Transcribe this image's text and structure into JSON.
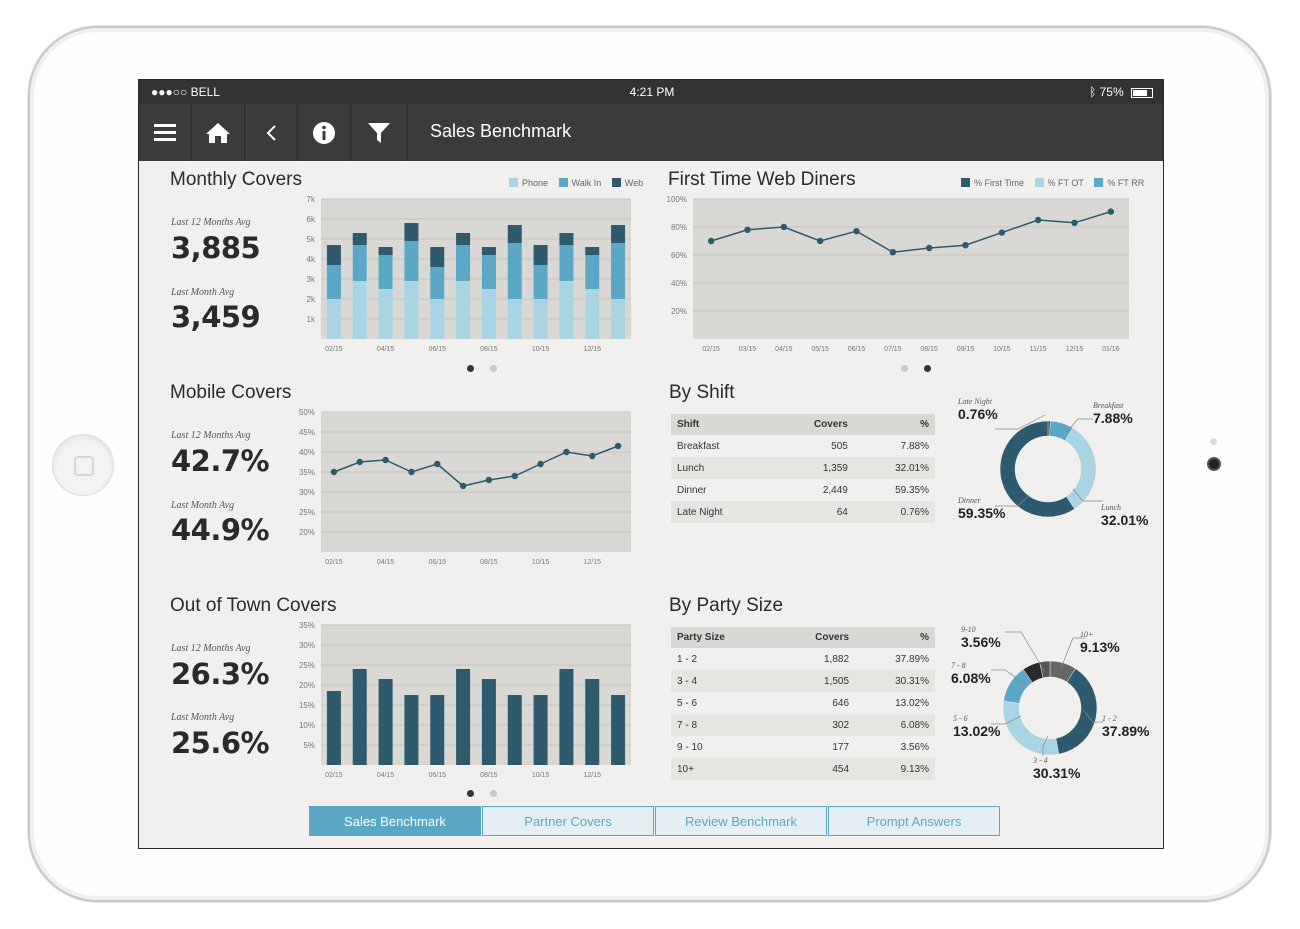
{
  "status": {
    "carrier": "●●●○○ BELL",
    "time": "4:21 PM",
    "battery": "75%"
  },
  "toolbar": {
    "title": "Sales Benchmark"
  },
  "colors": {
    "light": "#a9d4e4",
    "mid": "#5aa8c5",
    "dark": "#2e5a6d",
    "gray": "#666666",
    "black": "#333333"
  },
  "monthly": {
    "title": "Monthly Covers",
    "kpi1_label": "Last 12 Months Avg",
    "kpi1_value": "3,885",
    "kpi2_label": "Last Month Avg",
    "kpi2_value": "3,459",
    "legend": [
      "Phone",
      "Walk In",
      "Web"
    ]
  },
  "web_diners": {
    "title": "First Time Web Diners",
    "legend": [
      "% First Time",
      "% FT OT",
      "% FT RR"
    ]
  },
  "mobile": {
    "title": "Mobile Covers",
    "kpi1_label": "Last 12 Months Avg",
    "kpi1_value": "42.7%",
    "kpi2_label": "Last Month Avg",
    "kpi2_value": "44.9%"
  },
  "outoftown": {
    "title": "Out of Town Covers",
    "kpi1_label": "Last 12 Months Avg",
    "kpi1_value": "26.3%",
    "kpi2_label": "Last Month Avg",
    "kpi2_value": "25.6%"
  },
  "shift": {
    "title": "By Shift",
    "headers": [
      "Shift",
      "Covers",
      "%"
    ],
    "rows": [
      [
        "Breakfast",
        "505",
        "7.88%"
      ],
      [
        "Lunch",
        "1,359",
        "32.01%"
      ],
      [
        "Dinner",
        "2,449",
        "59.35%"
      ],
      [
        "Late Night",
        "64",
        "0.76%"
      ]
    ],
    "donut_labels": [
      {
        "name": "Late Night",
        "value": "0.76%"
      },
      {
        "name": "Breakfast",
        "value": "7.88%"
      },
      {
        "name": "Dinner",
        "value": "59.35%"
      },
      {
        "name": "Lunch",
        "value": "32.01%"
      }
    ]
  },
  "party": {
    "title": "By Party Size",
    "headers": [
      "Party Size",
      "Covers",
      "%"
    ],
    "rows": [
      [
        "1 - 2",
        "1,882",
        "37.89%"
      ],
      [
        "3 - 4",
        "1,505",
        "30.31%"
      ],
      [
        "5 - 6",
        "646",
        "13.02%"
      ],
      [
        "7 - 8",
        "302",
        "6.08%"
      ],
      [
        "9 - 10",
        "177",
        "3.56%"
      ],
      [
        "10+",
        "454",
        "9.13%"
      ]
    ],
    "donut_labels": [
      {
        "name": "9-10",
        "value": "3.56%"
      },
      {
        "name": "10+",
        "value": "9.13%"
      },
      {
        "name": "7 - 8",
        "value": "6.08%"
      },
      {
        "name": "5 - 6",
        "value": "13.02%"
      },
      {
        "name": "1 - 2",
        "value": "37.89%"
      },
      {
        "name": "3 - 4",
        "value": "30.31%"
      }
    ]
  },
  "tabs": [
    "Sales Benchmark",
    "Partner Covers",
    "Review Benchmark",
    "Prompt Answers"
  ],
  "chart_data": [
    {
      "id": "monthly",
      "type": "bar",
      "stacked": true,
      "categories": [
        "02/15",
        "03/15",
        "04/15",
        "05/15",
        "06/15",
        "07/15",
        "08/15",
        "09/15",
        "10/15",
        "11/15",
        "12/15",
        "01/16"
      ],
      "x_tick_labels": [
        "02/15",
        "04/15",
        "06/15",
        "08/15",
        "10/15",
        "12/15"
      ],
      "series": [
        {
          "name": "Phone",
          "values": [
            2000,
            2900,
            2500,
            2900,
            2000,
            2900,
            2500,
            2000,
            2000,
            2900,
            2500,
            2000
          ]
        },
        {
          "name": "Walk In",
          "values": [
            1700,
            1800,
            1700,
            2000,
            1600,
            1800,
            1700,
            2800,
            1700,
            1800,
            1700,
            2800
          ]
        },
        {
          "name": "Web",
          "values": [
            1000,
            600,
            400,
            900,
            1000,
            600,
            400,
            900,
            1000,
            600,
            400,
            900
          ]
        }
      ],
      "y_ticks": [
        "1k",
        "2k",
        "3k",
        "4k",
        "5k",
        "6k",
        "7k"
      ],
      "ylim": [
        0,
        7000
      ],
      "grid": true
    },
    {
      "id": "web_diners",
      "type": "line",
      "categories": [
        "02/15",
        "03/15",
        "04/15",
        "05/15",
        "06/15",
        "07/15",
        "08/15",
        "09/15",
        "10/15",
        "11/15",
        "12/15",
        "01/16"
      ],
      "series": [
        {
          "name": "% First Time",
          "values": [
            70,
            78,
            80,
            70,
            77,
            62,
            65,
            67,
            76,
            85,
            83,
            91
          ]
        }
      ],
      "y_ticks": [
        "20%",
        "40%",
        "60%",
        "80%",
        "100%"
      ],
      "ylim": [
        0,
        100
      ],
      "grid": true
    },
    {
      "id": "mobile",
      "type": "line",
      "categories": [
        "02/15",
        "03/15",
        "04/15",
        "05/15",
        "06/15",
        "07/15",
        "08/15",
        "09/15",
        "10/15",
        "11/15",
        "12/15",
        "01/16"
      ],
      "x_tick_labels": [
        "02/15",
        "04/15",
        "06/15",
        "08/15",
        "10/15",
        "12/15"
      ],
      "series": [
        {
          "values": [
            35,
            37.5,
            38,
            35,
            37,
            31.5,
            33,
            34,
            37,
            40,
            39,
            41.5
          ]
        }
      ],
      "y_ticks": [
        "20%",
        "25%",
        "30%",
        "35%",
        "40%",
        "45%",
        "50%"
      ],
      "ylim": [
        15,
        50
      ],
      "grid": true
    },
    {
      "id": "outoftown",
      "type": "bar",
      "categories": [
        "02/15",
        "03/15",
        "04/15",
        "05/15",
        "06/15",
        "07/15",
        "08/15",
        "09/15",
        "10/15",
        "11/15",
        "12/15",
        "01/16"
      ],
      "x_tick_labels": [
        "02/15",
        "04/15",
        "06/15",
        "08/15",
        "10/15",
        "12/15"
      ],
      "series": [
        {
          "values": [
            18.5,
            24,
            21.5,
            17.5,
            17.5,
            24,
            21.5,
            17.5,
            17.5,
            24,
            21.5,
            17.5
          ]
        }
      ],
      "y_ticks": [
        "5%",
        "10%",
        "15%",
        "20%",
        "25%",
        "30%",
        "35%"
      ],
      "ylim": [
        0,
        35
      ],
      "grid": true
    },
    {
      "id": "shift_donut",
      "type": "pie",
      "categories": [
        "Late Night",
        "Breakfast",
        "Lunch",
        "Dinner"
      ],
      "values": [
        0.76,
        7.88,
        32.01,
        59.35
      ]
    },
    {
      "id": "party_donut",
      "type": "pie",
      "categories": [
        "10+",
        "1 - 2",
        "3 - 4",
        "5 - 6",
        "7 - 8",
        "9 - 10"
      ],
      "values": [
        9.13,
        37.89,
        30.31,
        13.02,
        6.08,
        3.56
      ]
    }
  ]
}
